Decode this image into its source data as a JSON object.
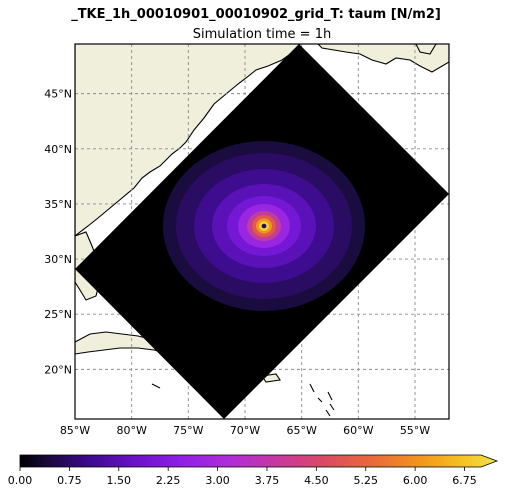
{
  "title": "_TKE_1h_00010901_00010902_grid_T: taum [N/m2]",
  "subtitle": "Simulation time = 1h",
  "map": {
    "lon_range": [
      -85,
      -52
    ],
    "lat_range": [
      15.5,
      49.5
    ],
    "lon_ticks": [
      -85,
      -80,
      -75,
      -70,
      -65,
      -60,
      -55
    ],
    "lat_ticks": [
      20,
      25,
      30,
      35,
      40,
      45
    ],
    "lon_labels": [
      "85°W",
      "80°W",
      "75°W",
      "70°W",
      "65°W",
      "60°W",
      "55°W"
    ],
    "lat_labels": [
      "20°N",
      "25°N",
      "30°N",
      "35°N",
      "40°N",
      "45°N"
    ],
    "gridlines": true,
    "land_color": "#efefdb",
    "ocean_color": "#ffffff",
    "domain_fill": "#000000",
    "vortex_center": {
      "lon": -68.4,
      "lat": 33.0
    }
  },
  "colorbar": {
    "min": 0.0,
    "max": 7.0,
    "ticks": [
      0.0,
      0.75,
      1.5,
      2.25,
      3.0,
      3.75,
      4.5,
      5.25,
      6.0,
      6.75
    ],
    "labels": [
      "0.00",
      "0.75",
      "1.50",
      "2.25",
      "3.00",
      "3.75",
      "4.50",
      "5.25",
      "6.00",
      "6.75"
    ],
    "extend": "max",
    "colormap": "plasma"
  }
}
